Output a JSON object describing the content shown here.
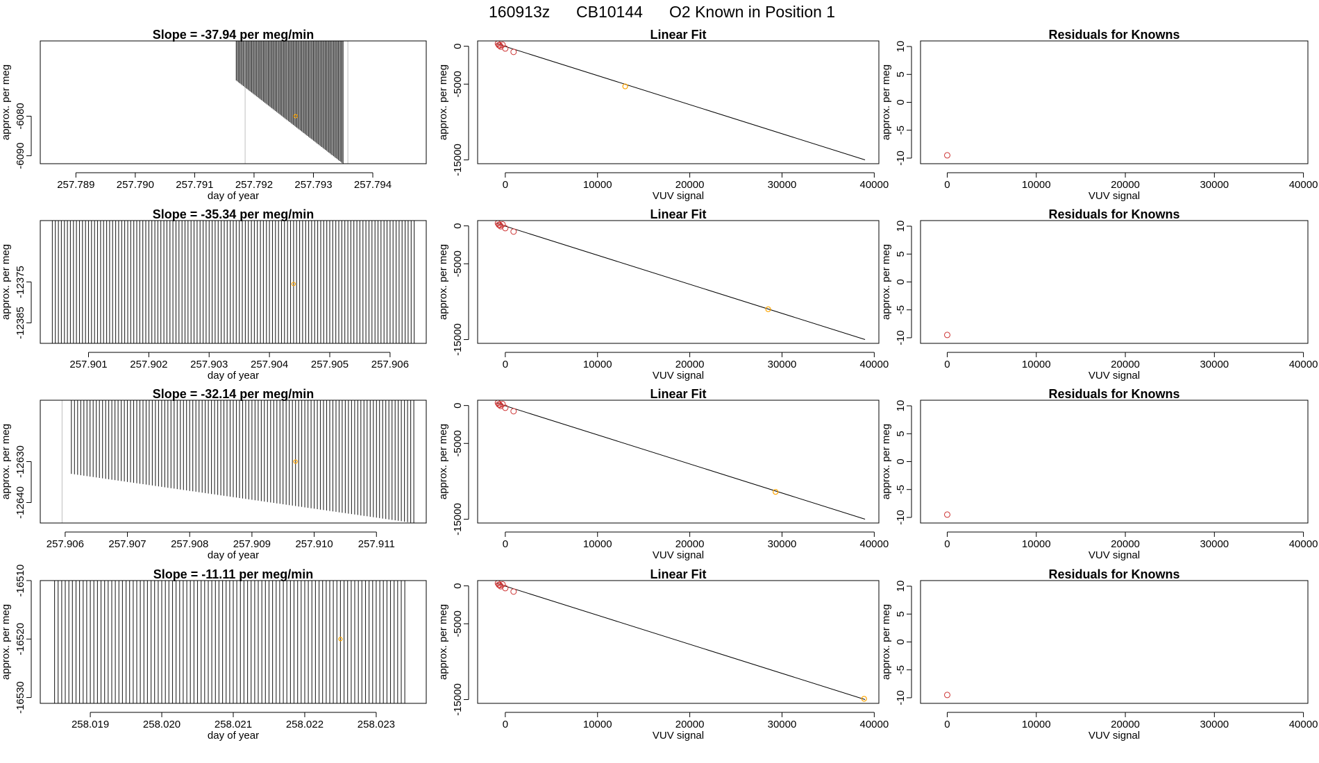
{
  "figure": {
    "main_title": {
      "date": "160913z",
      "tank": "CB10144",
      "position_text": "O2 Known in Position  1"
    }
  },
  "colors": {
    "trace": "#000000",
    "highlight": "#ffa500",
    "known": "#cd3333",
    "gridline": "#bebebe"
  },
  "chart_data": [
    {
      "type": "line",
      "panel": "time-trace",
      "row": 1,
      "title": "Slope =  -37.94  per meg/min",
      "xlabel": "day of year",
      "ylabel": "approx. per meg",
      "xlim": [
        257.7884,
        257.7949
      ],
      "ylim": [
        -6092,
        -6061
      ],
      "xticks": [
        "257.789",
        "257.790",
        "257.791",
        "257.792",
        "257.793",
        "257.794"
      ],
      "yticks": [
        "-6090",
        "-6080"
      ],
      "trace": {
        "x_start": 257.7917,
        "x_end": 257.7935,
        "y_top": -6061,
        "y_bottom_start": -6071,
        "y_bottom_end": -6092,
        "spacing_days": 2e-05
      },
      "mean_point": {
        "x": 257.7927,
        "y": -6080
      },
      "reference_lines_x": [
        257.79185,
        257.79358
      ]
    },
    {
      "type": "line",
      "panel": "time-trace",
      "row": 2,
      "title": "Slope =  -35.34  per meg/min",
      "xlabel": "day of year",
      "ylabel": "approx. per meg",
      "xlim": [
        257.9002,
        257.9066
      ],
      "ylim": [
        -12390,
        -12360
      ],
      "xticks": [
        "257.901",
        "257.902",
        "257.903",
        "257.904",
        "257.905",
        "257.906"
      ],
      "yticks": [
        "-12385",
        "-12375"
      ],
      "trace": {
        "x_start": 257.9004,
        "x_end": 257.9064,
        "y_top": -12360,
        "y_bottom_start": -12390,
        "y_bottom_end": -12390,
        "spacing_days": 5e-05
      },
      "mean_point": {
        "x": 257.9044,
        "y": -12375.5
      },
      "reference_lines_x": []
    },
    {
      "type": "line",
      "panel": "time-trace",
      "row": 3,
      "title": "Slope =  -32.14  per meg/min",
      "xlabel": "day of year",
      "ylabel": "approx. per meg",
      "xlim": [
        257.9056,
        257.9118
      ],
      "ylim": [
        -12645,
        -12615
      ],
      "xticks": [
        "257.906",
        "257.907",
        "257.908",
        "257.909",
        "257.910",
        "257.911"
      ],
      "yticks": [
        "-12640",
        "-12630"
      ],
      "trace": {
        "x_start": 257.9061,
        "x_end": 257.9116,
        "y_top": -12615,
        "y_bottom_start": -12633,
        "y_bottom_end": -12645,
        "spacing_days": 5e-05
      },
      "mean_point": {
        "x": 257.9097,
        "y": -12630
      },
      "reference_lines_x": [
        257.90595
      ]
    },
    {
      "type": "line",
      "panel": "time-trace",
      "row": 4,
      "title": "Slope =  -11.11  per meg/min",
      "xlabel": "day of year",
      "ylabel": "approx. per meg",
      "xlim": [
        258.0183,
        258.0237
      ],
      "ylim": [
        -16531,
        -16510
      ],
      "xticks": [
        "258.019",
        "258.020",
        "258.021",
        "258.022",
        "258.023"
      ],
      "yticks": [
        "-16530",
        "-16520",
        "-16510"
      ],
      "trace": {
        "x_start": 258.0185,
        "x_end": 258.0234,
        "y_top": -16510,
        "y_bottom_start": -16531,
        "y_bottom_end": -16531,
        "spacing_days": 5e-05
      },
      "mean_point": {
        "x": 258.0225,
        "y": -16520
      },
      "reference_lines_x": []
    },
    {
      "type": "scatter",
      "panel": "linear-fit",
      "row": 1,
      "title": "Linear Fit",
      "xlabel": "VUV signal",
      "ylabel": "approx. per meg",
      "xlim": [
        -3000,
        40500
      ],
      "ylim": [
        -15500,
        700
      ],
      "xticks": [
        0,
        10000,
        20000,
        30000,
        40000
      ],
      "yticks": [
        0,
        -5000,
        -15000
      ],
      "fit_line": {
        "x": [
          -1000,
          39000
        ],
        "y": [
          350,
          -15000
        ]
      },
      "points": {
        "x": [
          -800,
          -700,
          -600,
          -500,
          -300,
          0,
          900
        ],
        "y": [
          350,
          150,
          100,
          -50,
          200,
          -300,
          -750
        ]
      },
      "highlight_point": {
        "x": 13000,
        "y": -5300
      }
    },
    {
      "type": "scatter",
      "panel": "linear-fit",
      "row": 2,
      "title": "Linear Fit",
      "xlabel": "VUV signal",
      "ylabel": "approx. per meg",
      "xlim": [
        -3000,
        40500
      ],
      "ylim": [
        -15500,
        700
      ],
      "xticks": [
        0,
        10000,
        20000,
        30000,
        40000
      ],
      "yticks": [
        0,
        -5000,
        -15000
      ],
      "fit_line": {
        "x": [
          -1000,
          39000
        ],
        "y": [
          350,
          -15000
        ]
      },
      "points": {
        "x": [
          -800,
          -700,
          -600,
          -500,
          -300,
          0,
          900
        ],
        "y": [
          350,
          150,
          100,
          -50,
          200,
          -300,
          -750
        ]
      },
      "highlight_point": {
        "x": 28500,
        "y": -11000
      }
    },
    {
      "type": "scatter",
      "panel": "linear-fit",
      "row": 3,
      "title": "Linear Fit",
      "xlabel": "VUV signal",
      "ylabel": "approx. per meg",
      "xlim": [
        -3000,
        40500
      ],
      "ylim": [
        -15500,
        700
      ],
      "xticks": [
        0,
        10000,
        20000,
        30000,
        40000
      ],
      "yticks": [
        0,
        -5000,
        -15000
      ],
      "fit_line": {
        "x": [
          -1000,
          39000
        ],
        "y": [
          350,
          -15000
        ]
      },
      "points": {
        "x": [
          -800,
          -700,
          -600,
          -500,
          -300,
          0,
          900
        ],
        "y": [
          350,
          150,
          100,
          -50,
          200,
          -300,
          -750
        ]
      },
      "highlight_point": {
        "x": 29300,
        "y": -11400
      }
    },
    {
      "type": "scatter",
      "panel": "linear-fit",
      "row": 4,
      "title": "Linear Fit",
      "xlabel": "VUV signal",
      "ylabel": "approx. per meg",
      "xlim": [
        -3000,
        40500
      ],
      "ylim": [
        -15500,
        700
      ],
      "xticks": [
        0,
        10000,
        20000,
        30000,
        40000
      ],
      "yticks": [
        0,
        -5000,
        -15000
      ],
      "fit_line": {
        "x": [
          -1000,
          39000
        ],
        "y": [
          350,
          -15000
        ]
      },
      "points": {
        "x": [
          -800,
          -700,
          -600,
          -500,
          -300,
          0,
          900
        ],
        "y": [
          350,
          150,
          100,
          -50,
          200,
          -300,
          -750
        ]
      },
      "highlight_point": {
        "x": 38900,
        "y": -14900
      }
    },
    {
      "type": "scatter",
      "panel": "residuals",
      "row": 1,
      "title": "Residuals for Knowns",
      "xlabel": "VUV signal",
      "ylabel": "approx. per meg",
      "xlim": [
        -3000,
        40500
      ],
      "ylim": [
        -11,
        11
      ],
      "xticks": [
        0,
        10000,
        20000,
        30000,
        40000
      ],
      "yticks": [
        10,
        5,
        0,
        -5,
        -10
      ],
      "points": [
        {
          "x": 0,
          "y": -9.5
        }
      ]
    },
    {
      "type": "scatter",
      "panel": "residuals",
      "row": 2,
      "title": "Residuals for Knowns",
      "xlabel": "VUV signal",
      "ylabel": "approx. per meg",
      "xlim": [
        -3000,
        40500
      ],
      "ylim": [
        -11,
        11
      ],
      "xticks": [
        0,
        10000,
        20000,
        30000,
        40000
      ],
      "yticks": [
        10,
        5,
        0,
        -5,
        -10
      ],
      "points": [
        {
          "x": 0,
          "y": -9.5
        }
      ]
    },
    {
      "type": "scatter",
      "panel": "residuals",
      "row": 3,
      "title": "Residuals for Knowns",
      "xlabel": "VUV signal",
      "ylabel": "approx. per meg",
      "xlim": [
        -3000,
        40500
      ],
      "ylim": [
        -11,
        11
      ],
      "xticks": [
        0,
        10000,
        20000,
        30000,
        40000
      ],
      "yticks": [
        10,
        5,
        0,
        -5,
        -10
      ],
      "points": [
        {
          "x": 0,
          "y": -9.5
        }
      ]
    },
    {
      "type": "scatter",
      "panel": "residuals",
      "row": 4,
      "title": "Residuals for Knowns",
      "xlabel": "VUV signal",
      "ylabel": "approx. per meg",
      "xlim": [
        -3000,
        40500
      ],
      "ylim": [
        -11,
        11
      ],
      "xticks": [
        0,
        10000,
        20000,
        30000,
        40000
      ],
      "yticks": [
        10,
        5,
        0,
        -5,
        -10
      ],
      "points": [
        {
          "x": 0,
          "y": -9.5
        }
      ]
    }
  ]
}
